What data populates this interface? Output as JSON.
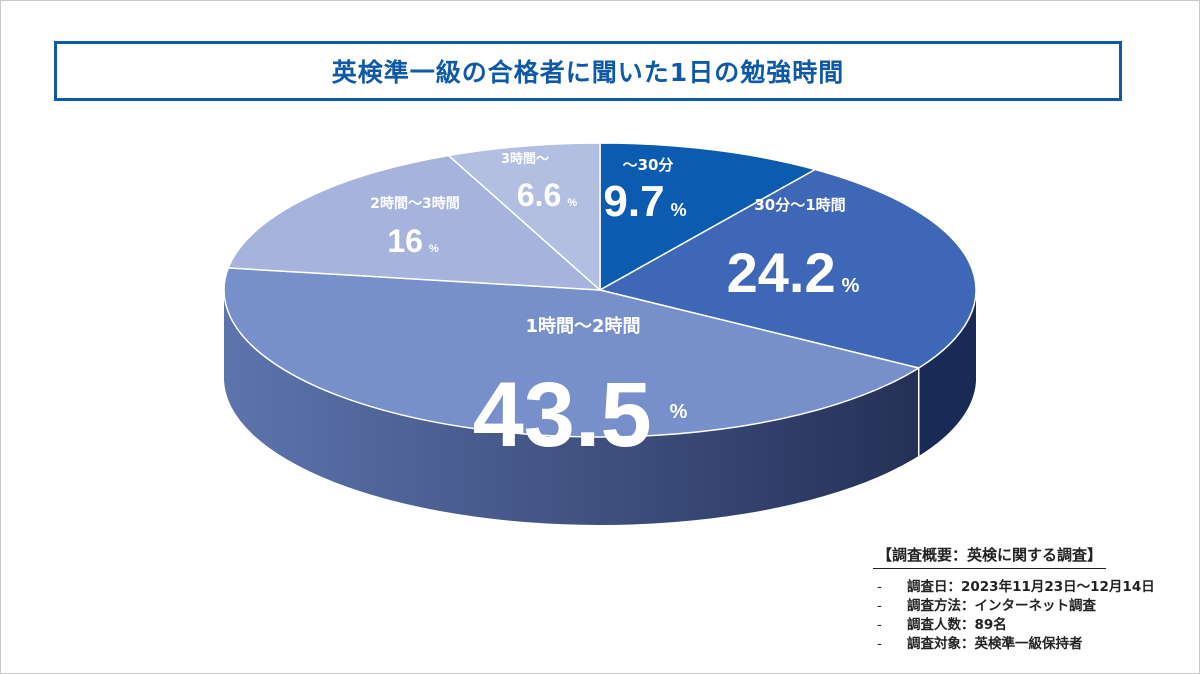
{
  "title": "英検準一級の合格者に聞いた1日の勉強時間",
  "chart_data": {
    "type": "pie",
    "unit": "%",
    "slices": [
      {
        "label": "～30分",
        "value": 9.7,
        "color": "#0b5cb0"
      },
      {
        "label": "30分～1時間",
        "value": 24.2,
        "color": "#3f67b7"
      },
      {
        "label": "1時間～2時間",
        "value": 43.5,
        "color": "#778fca"
      },
      {
        "label": "2時間～3時間",
        "value": 16,
        "color": "#a6b3dd"
      },
      {
        "label": "3時間～",
        "value": 6.6,
        "color": "#b3bfe2"
      }
    ]
  },
  "note": {
    "heading": "【調査概要：英検に関する調査】",
    "items": [
      {
        "dash": "-",
        "text": "調査日：2023年11月23日～12月14日"
      },
      {
        "dash": "-",
        "text": "調査方法：インターネット調査"
      },
      {
        "dash": "-",
        "text": "調査人数：89名"
      },
      {
        "dash": "-",
        "text": "調査対象：英検準一級保持者"
      }
    ]
  }
}
